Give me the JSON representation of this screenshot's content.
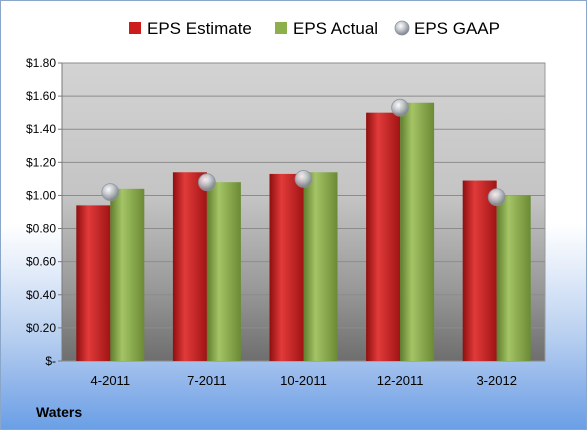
{
  "company_label": "Waters",
  "colors": {
    "estimate": "#cc1b1b",
    "actual": "#8db04c",
    "gaap": "#b8bcc4"
  },
  "chart_data": {
    "type": "bar",
    "categories": [
      "4-2011",
      "7-2011",
      "10-2011",
      "12-2011",
      "3-2012"
    ],
    "series": [
      {
        "name": "EPS Estimate",
        "values": [
          0.94,
          1.14,
          1.13,
          1.5,
          1.09
        ]
      },
      {
        "name": "EPS Actual",
        "values": [
          1.04,
          1.08,
          1.14,
          1.56,
          1.0
        ]
      },
      {
        "name": "EPS GAAP",
        "values": [
          1.02,
          1.08,
          1.1,
          1.53,
          0.99
        ]
      }
    ],
    "y_ticks": [
      "$-",
      "$0.20",
      "$0.40",
      "$0.60",
      "$0.80",
      "$1.00",
      "$1.20",
      "$1.40",
      "$1.60",
      "$1.80"
    ],
    "ylim": [
      0,
      1.8
    ],
    "grid": true,
    "legend": "top"
  }
}
